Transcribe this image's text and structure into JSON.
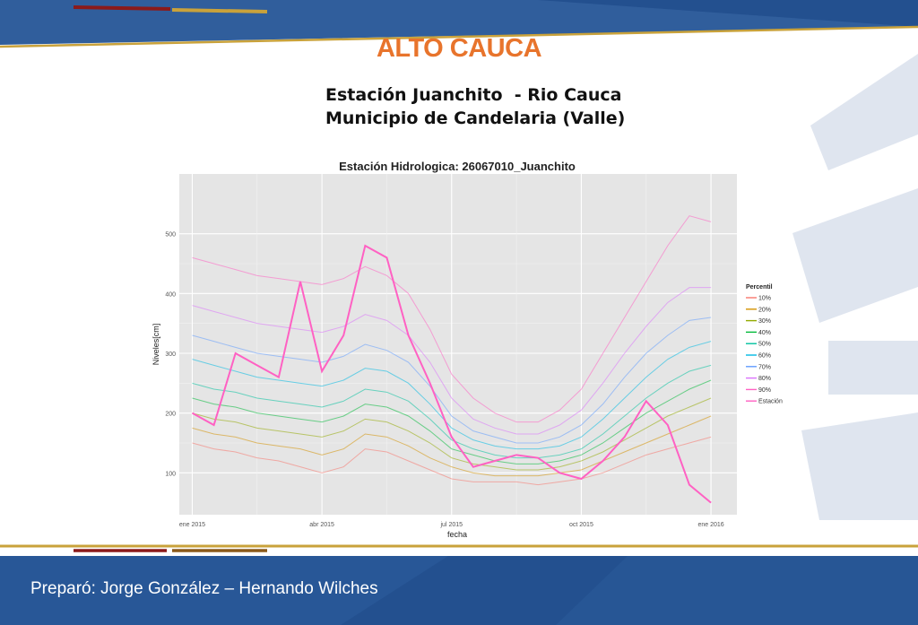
{
  "slide": {
    "title": "ALTO CAUCA",
    "station_line1": "Estación Juanchito  - Rio Cauca",
    "station_line2": "Municipio de Candelaria (Valle)",
    "footer": "Preparó: Jorge González – Hernando Wilches"
  },
  "colors": {
    "banner_blue": "#23508f",
    "banner_light": "#3c6aa8",
    "accent_gold": "#c9a23b",
    "accent_red": "#8b1a1a",
    "title_orange": "#e8742c",
    "panel_bg": "#e5e5e5",
    "grid": "#ffffff"
  },
  "chart_data": {
    "type": "line",
    "title": "Estación Hidrologica: 26067010_Juanchito",
    "xlabel": "fecha",
    "ylabel": "Niveles[cm]",
    "x_ticks": [
      "ene 2015",
      "abr 2015",
      "jul 2015",
      "oct 2015",
      "ene 2016"
    ],
    "y_ticks": [
      100,
      200,
      300,
      400,
      500
    ],
    "ylim": [
      30,
      600
    ],
    "xlim_months": [
      -0.3,
      12.6
    ],
    "grid": true,
    "legend_title": "Percentil",
    "legend_position": "right",
    "x_months": [
      0,
      0.5,
      1,
      1.5,
      2,
      2.5,
      3,
      3.5,
      4,
      4.5,
      5,
      5.5,
      6,
      6.5,
      7,
      7.5,
      8,
      8.5,
      9,
      9.5,
      10,
      10.5,
      11,
      11.5,
      12
    ],
    "series": [
      {
        "name": "10%",
        "color": "#f8766d",
        "values": [
          150,
          140,
          135,
          125,
          120,
          110,
          100,
          110,
          140,
          135,
          120,
          105,
          90,
          85,
          85,
          85,
          80,
          85,
          90,
          100,
          115,
          130,
          140,
          150,
          160
        ]
      },
      {
        "name": "20%",
        "color": "#d39200",
        "values": [
          175,
          165,
          160,
          150,
          145,
          140,
          130,
          140,
          165,
          160,
          145,
          125,
          110,
          100,
          95,
          95,
          95,
          100,
          105,
          120,
          135,
          150,
          165,
          180,
          195
        ]
      },
      {
        "name": "30%",
        "color": "#93aa00",
        "values": [
          200,
          190,
          185,
          175,
          170,
          165,
          160,
          170,
          190,
          185,
          170,
          150,
          125,
          115,
          110,
          105,
          105,
          110,
          120,
          135,
          155,
          175,
          195,
          210,
          225
        ]
      },
      {
        "name": "40%",
        "color": "#00ba38",
        "values": [
          225,
          215,
          210,
          200,
          195,
          190,
          185,
          195,
          215,
          210,
          195,
          170,
          140,
          130,
          120,
          115,
          115,
          120,
          130,
          150,
          175,
          200,
          220,
          240,
          255
        ]
      },
      {
        "name": "50%",
        "color": "#00c19f",
        "values": [
          250,
          240,
          235,
          225,
          220,
          215,
          210,
          220,
          240,
          235,
          220,
          190,
          155,
          140,
          130,
          125,
          125,
          130,
          140,
          165,
          195,
          225,
          250,
          270,
          280
        ]
      },
      {
        "name": "60%",
        "color": "#00b9e3",
        "values": [
          290,
          280,
          270,
          260,
          255,
          250,
          245,
          255,
          275,
          270,
          250,
          215,
          175,
          155,
          145,
          140,
          140,
          145,
          160,
          190,
          225,
          260,
          290,
          310,
          320
        ]
      },
      {
        "name": "70%",
        "color": "#619cff",
        "values": [
          330,
          320,
          310,
          300,
          295,
          290,
          285,
          295,
          315,
          305,
          285,
          245,
          195,
          170,
          160,
          150,
          150,
          160,
          180,
          215,
          260,
          300,
          330,
          355,
          360
        ]
      },
      {
        "name": "80%",
        "color": "#db72fb",
        "values": [
          380,
          370,
          360,
          350,
          345,
          340,
          335,
          345,
          365,
          355,
          330,
          285,
          225,
          190,
          175,
          165,
          165,
          180,
          205,
          250,
          300,
          345,
          385,
          410,
          410
        ]
      },
      {
        "name": "90%",
        "color": "#ff61c3",
        "values": [
          460,
          450,
          440,
          430,
          425,
          420,
          415,
          425,
          445,
          430,
          400,
          340,
          265,
          225,
          200,
          185,
          185,
          205,
          240,
          300,
          360,
          420,
          480,
          530,
          520
        ]
      },
      {
        "name": "Estación",
        "color": "#ff61c3",
        "values": [
          200,
          180,
          300,
          280,
          260,
          420,
          270,
          330,
          480,
          460,
          330,
          250,
          160,
          110,
          120,
          130,
          125,
          100,
          90,
          120,
          160,
          220,
          180,
          80,
          50
        ]
      }
    ]
  }
}
